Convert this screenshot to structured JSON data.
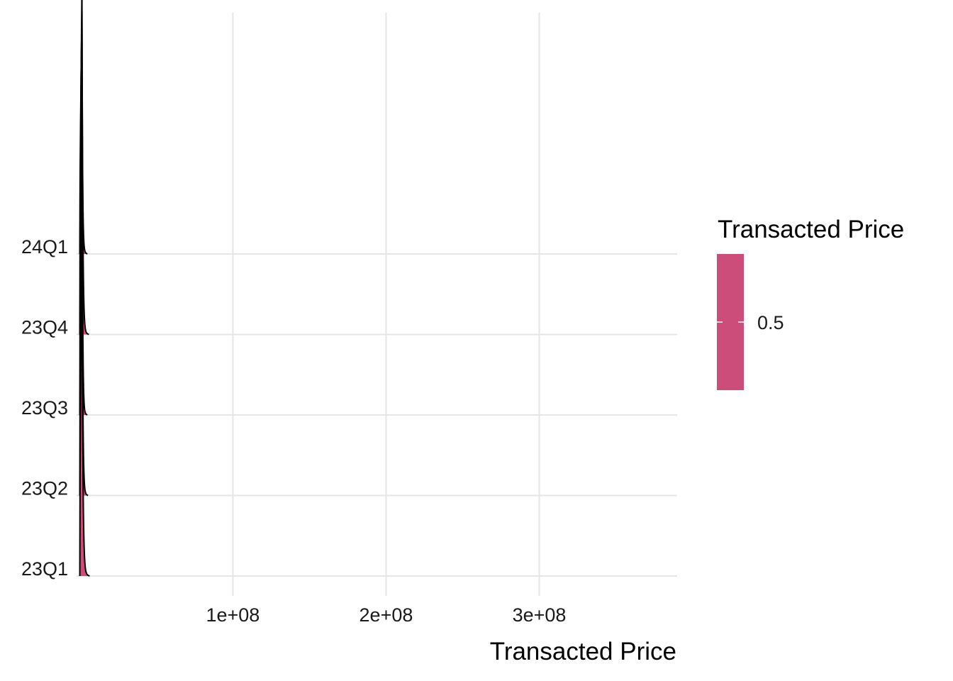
{
  "chart_data": {
    "type": "ridgeline",
    "xlabel": "Transacted Price",
    "ylabel": "",
    "title": "",
    "xlim": [
      -2000000,
      390000000
    ],
    "x_ticks": [
      {
        "value": 100000000,
        "label": "1e+08"
      },
      {
        "value": 200000000,
        "label": "2e+08"
      },
      {
        "value": 300000000,
        "label": "3e+08"
      }
    ],
    "categories": [
      "23Q1",
      "23Q2",
      "23Q3",
      "23Q4",
      "24Q1"
    ],
    "series": [
      {
        "category": "23Q1",
        "mode": 1500000,
        "right_tail": 6500000,
        "peak_height": 4.1
      },
      {
        "category": "23Q2",
        "mode": 1500000,
        "right_tail": 5500000,
        "peak_height": 4.4
      },
      {
        "category": "23Q3",
        "mode": 1500000,
        "right_tail": 5000000,
        "peak_height": 4.4
      },
      {
        "category": "23Q4",
        "mode": 1500000,
        "right_tail": 6000000,
        "peak_height": 4.3
      },
      {
        "category": "24Q1",
        "mode": 1500000,
        "right_tail": 5000000,
        "peak_height": 3.0
      }
    ],
    "fill_color": "#CC4C7A",
    "line_color": "#000000",
    "grid": true,
    "legend": {
      "title": "Transacted Price",
      "position": "right",
      "labels": [
        "0.5"
      ],
      "color": "#CC4C7A"
    }
  }
}
